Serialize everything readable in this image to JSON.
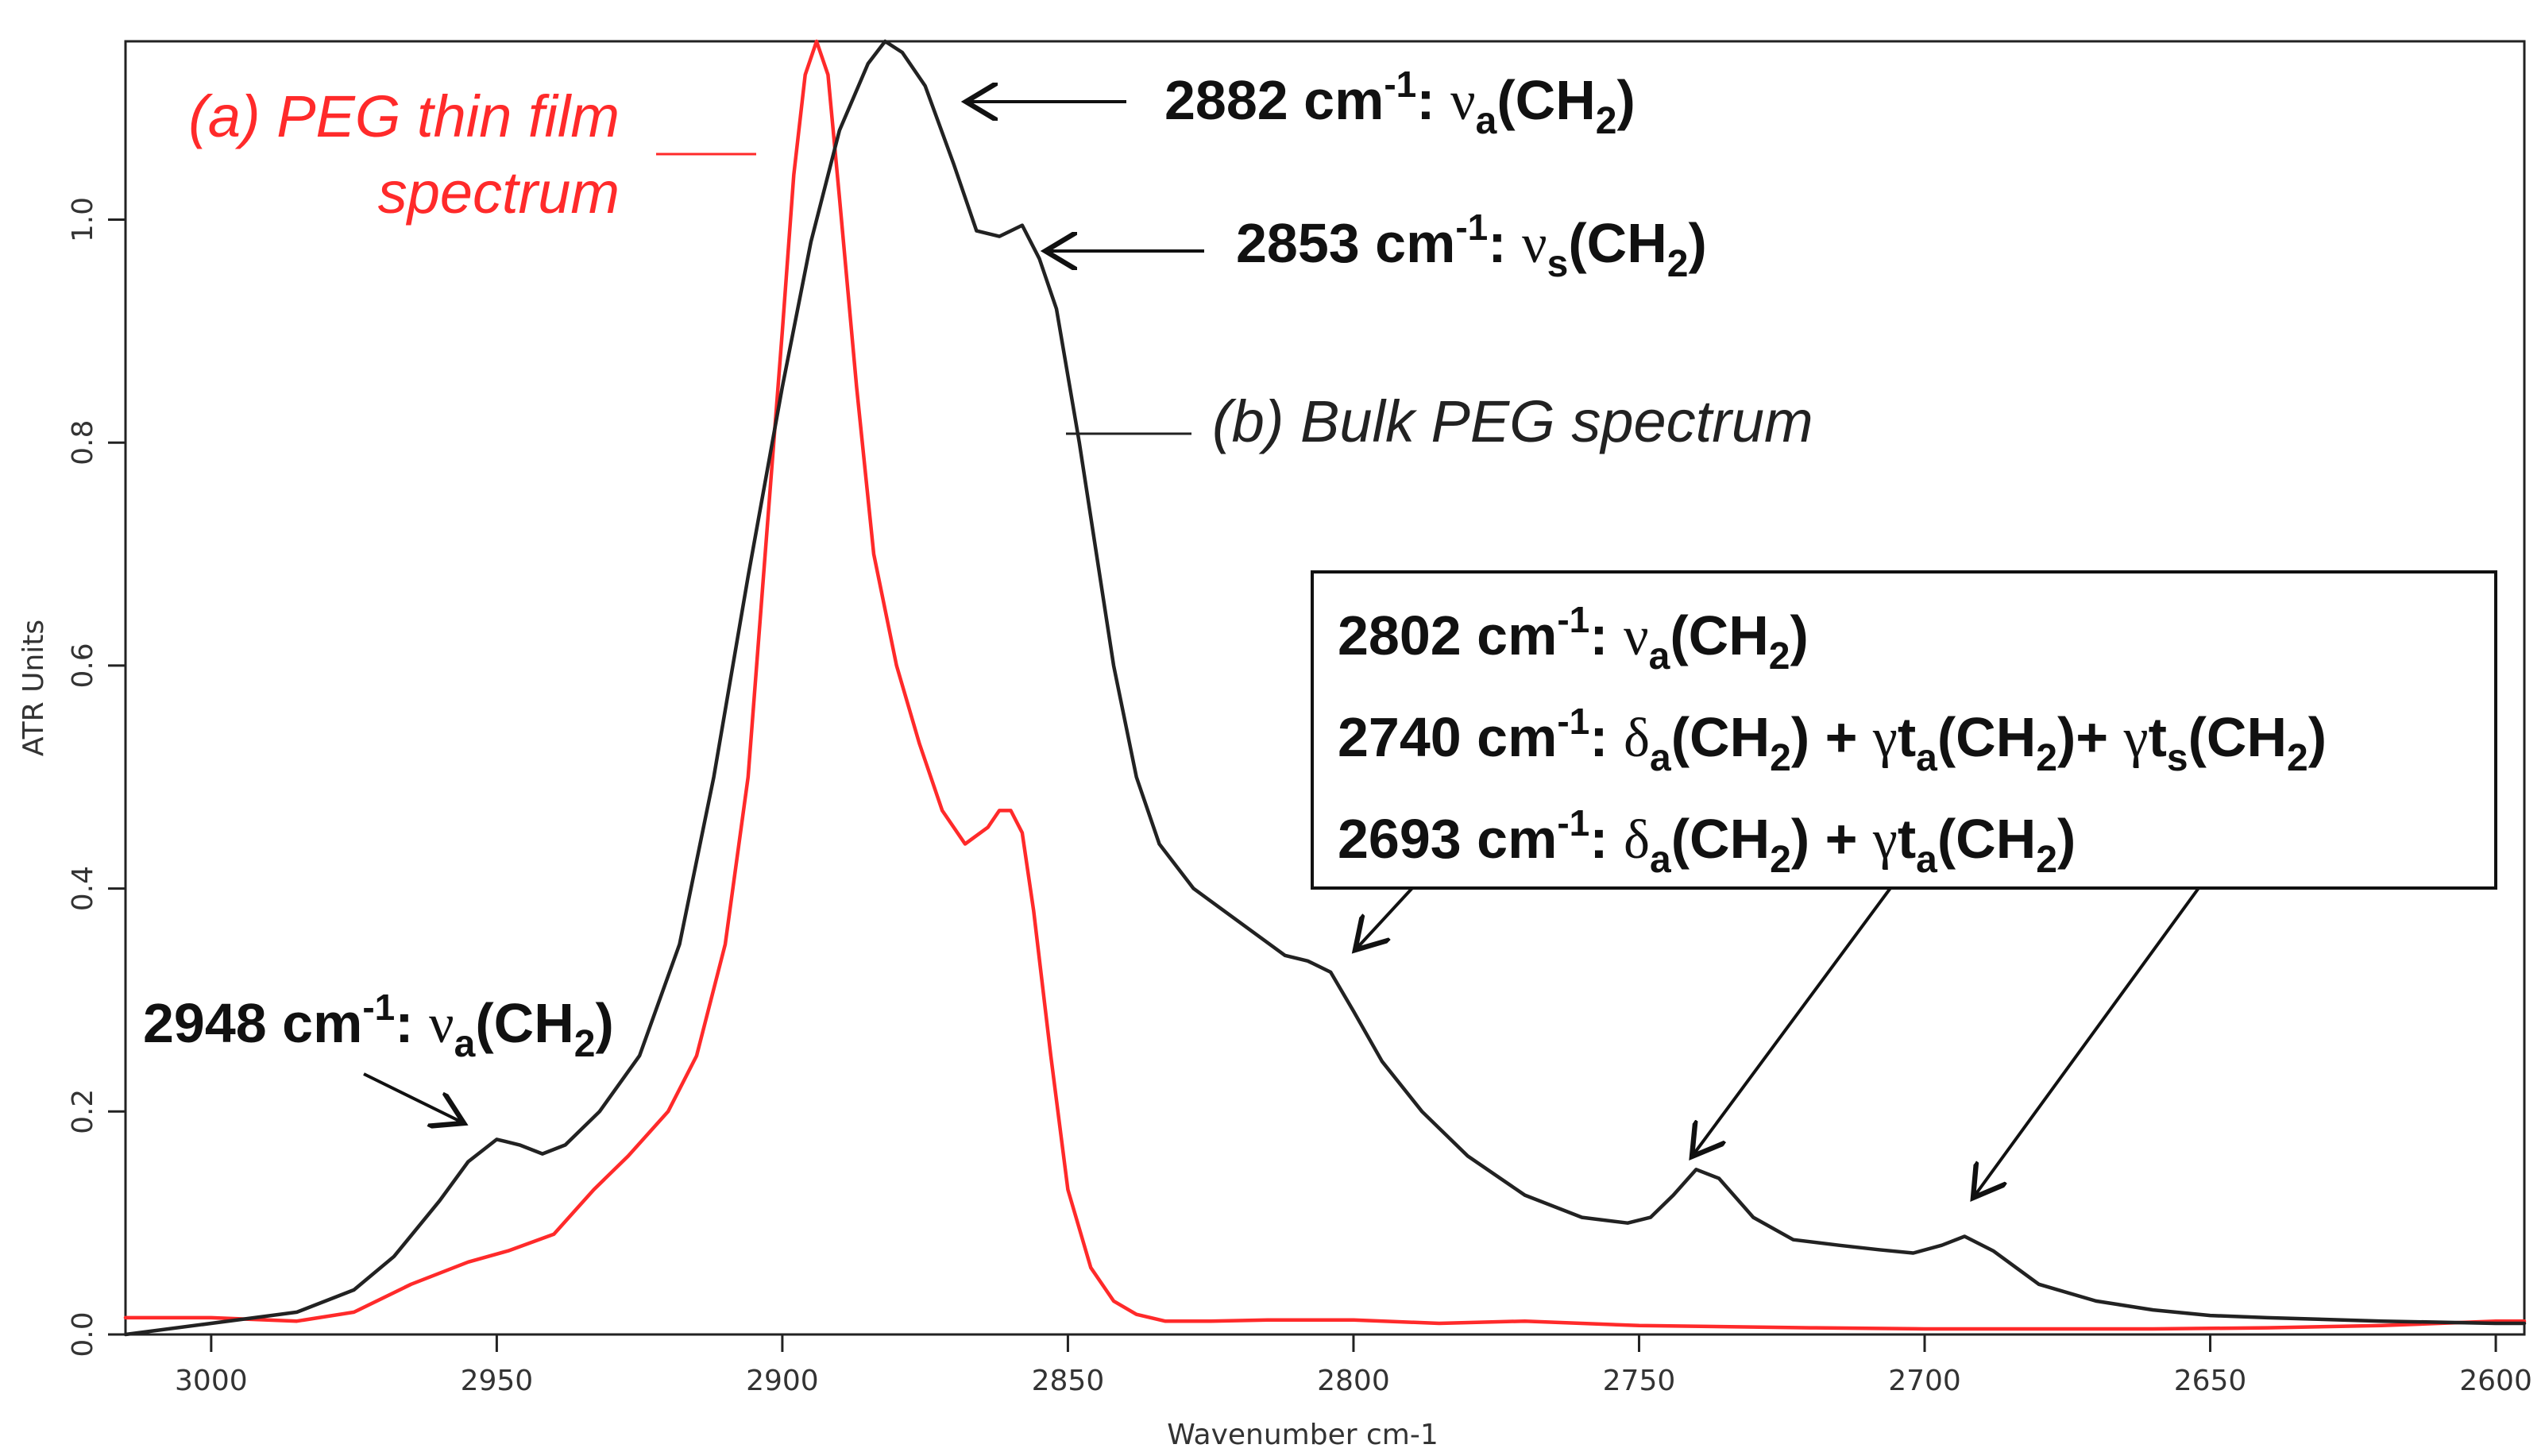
{
  "chart_data": {
    "type": "line",
    "xlabel": "Wavenumber cm-1",
    "ylabel": "ATR Units",
    "xlim": [
      3015,
      2595
    ],
    "ylim": [
      0.0,
      1.16
    ],
    "x_ticks": [
      3000,
      2950,
      2900,
      2850,
      2800,
      2750,
      2700,
      2650,
      2600
    ],
    "y_ticks": [
      0.0,
      0.2,
      0.4,
      0.6,
      0.8,
      1.0
    ],
    "y_tick_labels": [
      "0.0",
      "0.2",
      "0.4",
      "0.6",
      "0.8",
      "1.0"
    ],
    "grid": false,
    "series": [
      {
        "name": "(a) PEG thin film spectrum",
        "label_line1": "(a) PEG thin film",
        "label_line2": "spectrum",
        "color": "#ff2a2a",
        "x": [
          3015,
          3000,
          2985,
          2975,
          2965,
          2955,
          2948,
          2940,
          2933,
          2927,
          2920,
          2915,
          2910,
          2906,
          2903,
          2900,
          2898,
          2896,
          2894,
          2892,
          2890,
          2887,
          2884,
          2880,
          2876,
          2872,
          2868,
          2864,
          2862,
          2860,
          2858,
          2856,
          2853,
          2850,
          2846,
          2842,
          2838,
          2833,
          2825,
          2815,
          2800,
          2785,
          2770,
          2750,
          2720,
          2700,
          2680,
          2660,
          2640,
          2620,
          2600,
          2595
        ],
        "y": [
          0.015,
          0.015,
          0.012,
          0.02,
          0.045,
          0.065,
          0.075,
          0.09,
          0.13,
          0.16,
          0.2,
          0.25,
          0.35,
          0.5,
          0.7,
          0.9,
          1.04,
          1.13,
          1.16,
          1.13,
          1.02,
          0.85,
          0.7,
          0.6,
          0.53,
          0.47,
          0.44,
          0.455,
          0.47,
          0.47,
          0.45,
          0.38,
          0.25,
          0.13,
          0.06,
          0.03,
          0.018,
          0.012,
          0.012,
          0.013,
          0.013,
          0.01,
          0.012,
          0.008,
          0.006,
          0.005,
          0.005,
          0.005,
          0.006,
          0.008,
          0.012,
          0.012
        ]
      },
      {
        "name": "(b) Bulk PEG spectrum",
        "label": "(b) Bulk PEG spectrum",
        "color": "#222222",
        "x": [
          3015,
          3000,
          2985,
          2975,
          2968,
          2960,
          2955,
          2950,
          2946,
          2942,
          2938,
          2932,
          2925,
          2918,
          2912,
          2906,
          2900,
          2895,
          2890,
          2885,
          2882,
          2879,
          2875,
          2870,
          2866,
          2862,
          2858,
          2855,
          2852,
          2848,
          2845,
          2842,
          2838,
          2834,
          2828,
          2820,
          2812,
          2808,
          2804,
          2800,
          2795,
          2788,
          2780,
          2770,
          2760,
          2752,
          2748,
          2744,
          2740,
          2736,
          2730,
          2723,
          2715,
          2708,
          2702,
          2697,
          2693,
          2688,
          2680,
          2670,
          2660,
          2650,
          2640,
          2620,
          2600,
          2595
        ],
        "y": [
          0.0,
          0.01,
          0.02,
          0.04,
          0.07,
          0.12,
          0.155,
          0.175,
          0.17,
          0.162,
          0.17,
          0.2,
          0.25,
          0.35,
          0.5,
          0.68,
          0.85,
          0.98,
          1.08,
          1.14,
          1.16,
          1.15,
          1.12,
          1.05,
          0.99,
          0.985,
          0.995,
          0.965,
          0.92,
          0.8,
          0.7,
          0.6,
          0.5,
          0.44,
          0.4,
          0.37,
          0.34,
          0.335,
          0.325,
          0.29,
          0.245,
          0.2,
          0.16,
          0.125,
          0.105,
          0.1,
          0.105,
          0.125,
          0.148,
          0.14,
          0.105,
          0.085,
          0.08,
          0.076,
          0.073,
          0.08,
          0.088,
          0.075,
          0.045,
          0.03,
          0.022,
          0.017,
          0.015,
          0.012,
          0.01,
          0.01
        ]
      }
    ],
    "annotations": [
      {
        "id": "ann-2882",
        "prefix": "2882 cm",
        "sup": "-1",
        "colon": ": ",
        "sym": "ν",
        "sub": "a",
        "rest": "(CH",
        "rsub": "2",
        "end": ")"
      },
      {
        "id": "ann-2853",
        "prefix": "2853 cm",
        "sup": "-1",
        "colon": ": ",
        "sym": "ν",
        "sub": "s",
        "rest": "(CH",
        "rsub": "2",
        "end": ")"
      },
      {
        "id": "ann-2948",
        "prefix": "2948 cm",
        "sup": "-1",
        "colon": ": ",
        "sym": "ν",
        "sub": "a",
        "rest": "(CH",
        "rsub": "2",
        "end": ")"
      }
    ],
    "box_annotations": [
      {
        "id": "box-2802",
        "line": "2802 cm-1: νa(CH2)"
      },
      {
        "id": "box-2740",
        "line": "2740 cm-1: δa(CH2) + γta(CH2)+ γts(CH2)"
      },
      {
        "id": "box-2693",
        "line": "2693 cm-1: δa(CH2) + γta(CH2)"
      }
    ]
  }
}
